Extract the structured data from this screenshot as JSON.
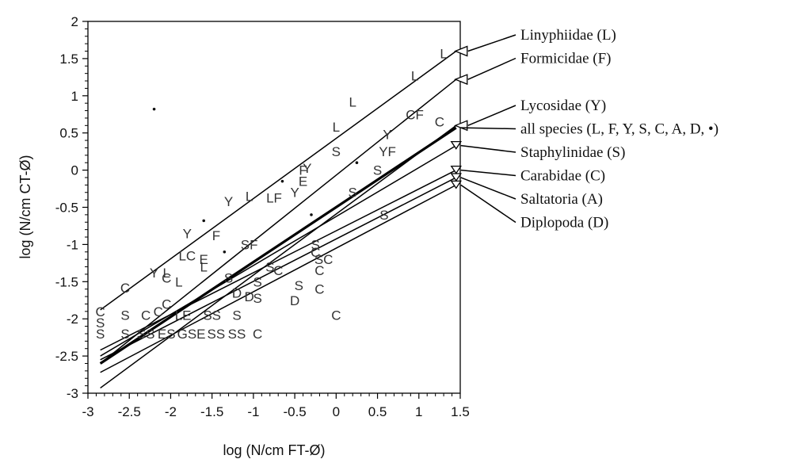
{
  "chart_data": {
    "type": "scatter",
    "xlabel": "log (N/cm FT-Ø)",
    "ylabel": "log (N/cm CT-Ø)",
    "xlim": [
      -3,
      1.5
    ],
    "ylim": [
      -3,
      2
    ],
    "xticks": [
      -3,
      -2.5,
      -2,
      -1.5,
      -1,
      -0.5,
      0,
      0.5,
      1,
      1.5
    ],
    "xtick_labels": [
      "-3",
      "-2.5",
      "-2",
      "-1.5",
      "-1",
      "-0.5",
      "0",
      "0.5",
      "1",
      "1.5"
    ],
    "yticks": [
      -3,
      -2.5,
      -2,
      -1.5,
      -1,
      -0.5,
      0,
      0.5,
      1,
      1.5,
      2
    ],
    "ytick_labels": [
      "-3",
      "-2.5",
      "-2",
      "-1.5",
      "-1",
      "-0.5",
      "0",
      "0.5",
      "1",
      "1.5",
      "2"
    ],
    "grid": false,
    "regression_lines": [
      {
        "label": "Linyphiidae (L)",
        "x": [
          -2.85,
          1.45
        ],
        "y": [
          -1.88,
          1.6
        ],
        "marker": "triangle-left",
        "bold": false
      },
      {
        "label": "Formicidae (F)",
        "x": [
          -2.85,
          1.45
        ],
        "y": [
          -2.6,
          1.22
        ],
        "marker": "triangle-left",
        "bold": false
      },
      {
        "label": "Lycosidae (Y)",
        "x": [
          -2.85,
          1.45
        ],
        "y": [
          -2.93,
          0.6
        ],
        "marker": "triangle-left",
        "bold": false
      },
      {
        "label": "all species (L, F, Y, S, C, A, D, •)",
        "x": [
          -2.85,
          1.45
        ],
        "y": [
          -2.6,
          0.57
        ],
        "marker": "none",
        "bold": true
      },
      {
        "label": "Staphylinidae (S)",
        "x": [
          -2.85,
          1.45
        ],
        "y": [
          -2.5,
          0.33
        ],
        "marker": "triangle-down",
        "bold": false
      },
      {
        "label": "Carabidae (C)",
        "x": [
          -2.85,
          1.45
        ],
        "y": [
          -2.42,
          0.0
        ],
        "marker": "triangle-down",
        "bold": false
      },
      {
        "label": "Saltatoria (A)",
        "x": [
          -2.85,
          1.45
        ],
        "y": [
          -2.55,
          -0.1
        ],
        "marker": "triangle-down",
        "bold": false
      },
      {
        "label": "Diplopoda (D)",
        "x": [
          -2.85,
          1.45
        ],
        "y": [
          -2.72,
          -0.2
        ],
        "marker": "triangle-down",
        "bold": false
      }
    ],
    "points": [
      {
        "t": "L",
        "x": 1.3,
        "y": 1.57
      },
      {
        "t": "L",
        "x": 0.95,
        "y": 1.27
      },
      {
        "t": "L",
        "x": 0.2,
        "y": 0.92
      },
      {
        "t": "CF",
        "x": 0.95,
        "y": 0.75
      },
      {
        "t": "C",
        "x": 1.25,
        "y": 0.65
      },
      {
        "t": "L",
        "x": 0.0,
        "y": 0.58
      },
      {
        "t": "Y",
        "x": 0.62,
        "y": 0.48
      },
      {
        "t": "S",
        "x": 0.0,
        "y": 0.25
      },
      {
        "t": "YF",
        "x": 0.62,
        "y": 0.25
      },
      {
        "t": "S",
        "x": 0.5,
        "y": 0.0
      },
      {
        "t": "F",
        "x": -0.4,
        "y": 0.0
      },
      {
        "t": "Y",
        "x": -0.35,
        "y": 0.03
      },
      {
        "t": "E",
        "x": -0.4,
        "y": -0.15
      },
      {
        "t": "S",
        "x": 0.2,
        "y": -0.3
      },
      {
        "t": "L",
        "x": -1.05,
        "y": -0.35
      },
      {
        "t": "Y",
        "x": -1.3,
        "y": -0.42
      },
      {
        "t": "LF",
        "x": -0.75,
        "y": -0.37
      },
      {
        "t": "Y",
        "x": -0.5,
        "y": -0.3
      },
      {
        "t": "S",
        "x": 0.58,
        "y": -0.6
      },
      {
        "t": "Y",
        "x": -1.8,
        "y": -0.85
      },
      {
        "t": "F",
        "x": -1.45,
        "y": -0.88
      },
      {
        "t": "SF",
        "x": -1.05,
        "y": -1.0
      },
      {
        "t": "LC",
        "x": -1.8,
        "y": -1.15
      },
      {
        "t": "E",
        "x": -1.6,
        "y": -1.2
      },
      {
        "t": "L",
        "x": -1.6,
        "y": -1.3
      },
      {
        "t": "S",
        "x": -0.25,
        "y": -1.0
      },
      {
        "t": "SC",
        "x": -0.15,
        "y": -1.2
      },
      {
        "t": "C",
        "x": -0.25,
        "y": -1.1
      },
      {
        "t": "C",
        "x": -0.2,
        "y": -1.35
      },
      {
        "t": "S",
        "x": -0.8,
        "y": -1.3
      },
      {
        "t": "C",
        "x": -0.7,
        "y": -1.35
      },
      {
        "t": "Y",
        "x": -2.2,
        "y": -1.38
      },
      {
        "t": "L",
        "x": -2.05,
        "y": -1.38
      },
      {
        "t": "C",
        "x": -2.05,
        "y": -1.45
      },
      {
        "t": "L",
        "x": -1.9,
        "y": -1.5
      },
      {
        "t": "C",
        "x": -2.55,
        "y": -1.58
      },
      {
        "t": "S",
        "x": -1.3,
        "y": -1.45
      },
      {
        "t": "S",
        "x": -0.95,
        "y": -1.5
      },
      {
        "t": "C",
        "x": -0.2,
        "y": -1.6
      },
      {
        "t": "S",
        "x": -0.45,
        "y": -1.55
      },
      {
        "t": "D",
        "x": -0.5,
        "y": -1.75
      },
      {
        "t": "D",
        "x": -1.05,
        "y": -1.7
      },
      {
        "t": "C",
        "x": -2.05,
        "y": -1.8
      },
      {
        "t": "D",
        "x": -1.2,
        "y": -1.65
      },
      {
        "t": "S",
        "x": -0.95,
        "y": -1.72
      },
      {
        "t": "C",
        "x": 0.0,
        "y": -1.95
      },
      {
        "t": "C",
        "x": -2.3,
        "y": -1.95
      },
      {
        "t": "S",
        "x": -2.55,
        "y": -1.95
      },
      {
        "t": "C",
        "x": -2.85,
        "y": -1.9
      },
      {
        "t": "C",
        "x": -2.15,
        "y": -1.9
      },
      {
        "t": "LE",
        "x": -1.85,
        "y": -1.95
      },
      {
        "t": "SS",
        "x": -1.5,
        "y": -1.95
      },
      {
        "t": "S",
        "x": -1.2,
        "y": -1.95
      },
      {
        "t": "S",
        "x": -2.85,
        "y": -2.05
      },
      {
        "t": "S",
        "x": -2.85,
        "y": -2.2
      },
      {
        "t": "S",
        "x": -2.55,
        "y": -2.2
      },
      {
        "t": "SS",
        "x": -2.3,
        "y": -2.2
      },
      {
        "t": "ES",
        "x": -2.05,
        "y": -2.2
      },
      {
        "t": "GSE",
        "x": -1.75,
        "y": -2.2
      },
      {
        "t": "SS",
        "x": -1.45,
        "y": -2.2
      },
      {
        "t": "SS",
        "x": -1.2,
        "y": -2.2
      },
      {
        "t": "C",
        "x": -0.95,
        "y": -2.2
      }
    ],
    "dots": [
      {
        "x": -2.2,
        "y": 0.82
      },
      {
        "x": -1.6,
        "y": -0.68
      },
      {
        "x": -0.65,
        "y": -0.15
      },
      {
        "x": -0.3,
        "y": -0.6
      },
      {
        "x": 0.25,
        "y": 0.1
      },
      {
        "x": -1.35,
        "y": -1.1
      }
    ]
  }
}
